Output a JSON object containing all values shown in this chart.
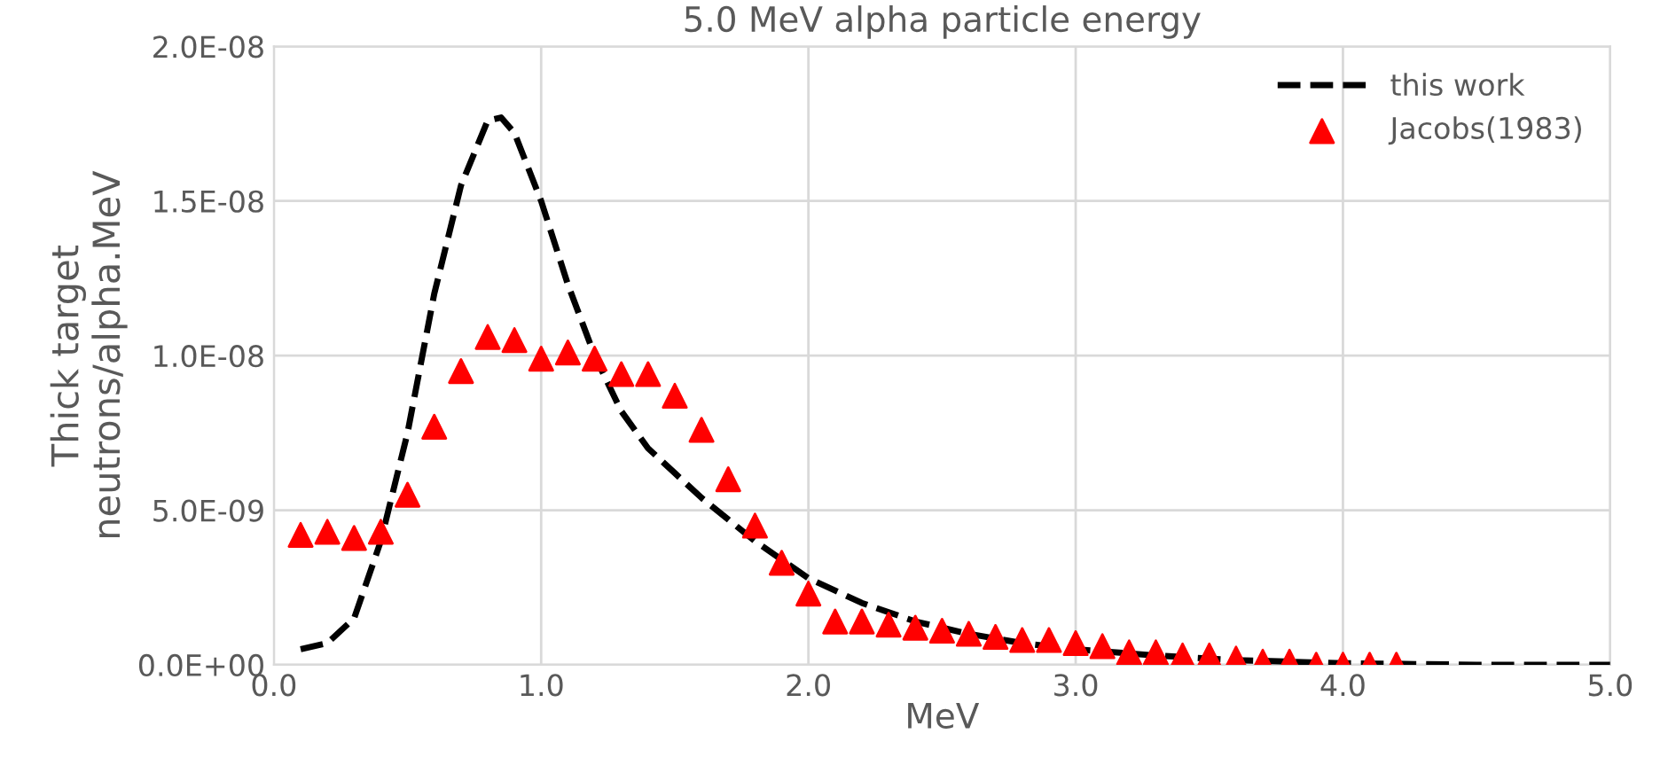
{
  "chart_data": {
    "type": "line",
    "title": "5.0 MeV alpha particle energy",
    "xlabel": "MeV",
    "ylabel": "Thick target\nneutrons/alpha.MeV",
    "xlim": [
      0,
      5
    ],
    "ylim": [
      0,
      2e-08
    ],
    "xticks": [
      {
        "value": 0,
        "label": "0.0"
      },
      {
        "value": 1,
        "label": "1.0"
      },
      {
        "value": 2,
        "label": "2.0"
      },
      {
        "value": 3,
        "label": "3.0"
      },
      {
        "value": 4,
        "label": "4.0"
      },
      {
        "value": 5,
        "label": "5.0"
      }
    ],
    "yticks": [
      {
        "value": 0,
        "label": "0.0E+00"
      },
      {
        "value": 5e-09,
        "label": "5.0E-09"
      },
      {
        "value": 1e-08,
        "label": "1.0E-08"
      },
      {
        "value": 1.5e-08,
        "label": "1.5E-08"
      },
      {
        "value": 2e-08,
        "label": "2.0E-08"
      }
    ],
    "grid": true,
    "legend": "top right",
    "series": [
      {
        "name": "this work",
        "color": "#000000",
        "line_style": "dashed",
        "marker": "none",
        "x": [
          0.1,
          0.2,
          0.3,
          0.4,
          0.5,
          0.6,
          0.7,
          0.8,
          0.85,
          0.9,
          1.0,
          1.1,
          1.2,
          1.3,
          1.4,
          1.5,
          1.6,
          1.7,
          1.8,
          1.9,
          2.0,
          2.2,
          2.4,
          2.6,
          2.8,
          3.0,
          3.3,
          3.6,
          4.0,
          4.5,
          5.0
        ],
        "values": [
          5e-10,
          7e-10,
          1.5e-09,
          4e-09,
          7.5e-09,
          1.2e-08,
          1.55e-08,
          1.76e-08,
          1.77e-08,
          1.72e-08,
          1.5e-08,
          1.23e-08,
          1e-08,
          8.2e-09,
          7e-09,
          6.2e-09,
          5.4e-09,
          4.7e-09,
          4e-09,
          3.4e-09,
          2.8e-09,
          2e-09,
          1.4e-09,
          1e-09,
          7e-10,
          5e-10,
          3e-10,
          1.5e-10,
          5e-11,
          0,
          0
        ]
      },
      {
        "name": "Jacobs(1983)",
        "type": "scatter",
        "color": "#ff0000",
        "marker": "triangle",
        "x": [
          0.1,
          0.2,
          0.3,
          0.4,
          0.5,
          0.6,
          0.7,
          0.8,
          0.9,
          1.0,
          1.1,
          1.2,
          1.3,
          1.4,
          1.5,
          1.6,
          1.7,
          1.8,
          1.9,
          2.0,
          2.1,
          2.2,
          2.3,
          2.4,
          2.5,
          2.6,
          2.7,
          2.8,
          2.9,
          3.0,
          3.1,
          3.2,
          3.3,
          3.4,
          3.5,
          3.6,
          3.7,
          3.8,
          3.9,
          4.0,
          4.1,
          4.2
        ],
        "values": [
          4.2e-09,
          4.3e-09,
          4.1e-09,
          4.3e-09,
          5.5e-09,
          7.7e-09,
          9.5e-09,
          1.06e-08,
          1.05e-08,
          9.9e-09,
          1.01e-08,
          9.9e-09,
          9.4e-09,
          9.4e-09,
          8.7e-09,
          7.6e-09,
          6e-09,
          4.5e-09,
          3.3e-09,
          2.3e-09,
          1.4e-09,
          1.4e-09,
          1.3e-09,
          1.2e-09,
          1.1e-09,
          1e-09,
          9e-10,
          8e-10,
          8e-10,
          7e-10,
          6e-10,
          4e-10,
          4e-10,
          3e-10,
          3e-10,
          2e-10,
          1e-10,
          1e-10,
          0,
          0,
          0,
          0
        ]
      }
    ]
  }
}
